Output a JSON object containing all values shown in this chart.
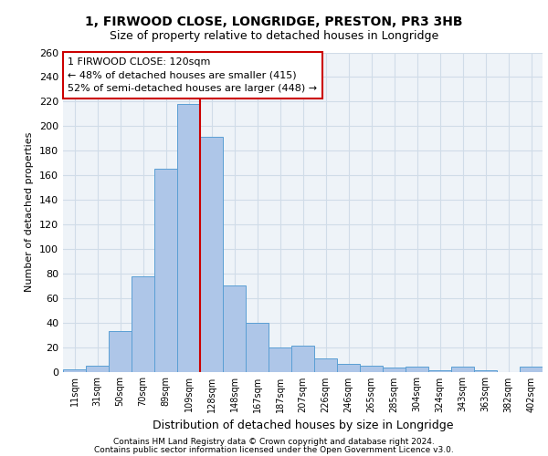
{
  "title1": "1, FIRWOOD CLOSE, LONGRIDGE, PRESTON, PR3 3HB",
  "title2": "Size of property relative to detached houses in Longridge",
  "xlabel": "Distribution of detached houses by size in Longridge",
  "ylabel": "Number of detached properties",
  "footer1": "Contains HM Land Registry data © Crown copyright and database right 2024.",
  "footer2": "Contains public sector information licensed under the Open Government Licence v3.0.",
  "annotation_line1": "1 FIRWOOD CLOSE: 120sqm",
  "annotation_line2": "← 48% of detached houses are smaller (415)",
  "annotation_line3": "52% of semi-detached houses are larger (448) →",
  "bar_labels": [
    "11sqm",
    "31sqm",
    "50sqm",
    "70sqm",
    "89sqm",
    "109sqm",
    "128sqm",
    "148sqm",
    "167sqm",
    "187sqm",
    "207sqm",
    "226sqm",
    "246sqm",
    "265sqm",
    "285sqm",
    "304sqm",
    "324sqm",
    "343sqm",
    "363sqm",
    "382sqm",
    "402sqm"
  ],
  "bar_values": [
    2,
    5,
    33,
    78,
    165,
    218,
    191,
    70,
    40,
    20,
    21,
    11,
    6,
    5,
    3,
    4,
    1,
    4,
    1,
    0,
    4
  ],
  "bar_color": "#aec6e8",
  "bar_edge_color": "#5a9fd4",
  "grid_color": "#d0dce8",
  "bg_color": "#eef3f8",
  "vline_color": "#cc0000",
  "annotation_box_color": "#cc0000",
  "ylim": [
    0,
    260
  ],
  "yticks": [
    0,
    20,
    40,
    60,
    80,
    100,
    120,
    140,
    160,
    180,
    200,
    220,
    240,
    260
  ]
}
